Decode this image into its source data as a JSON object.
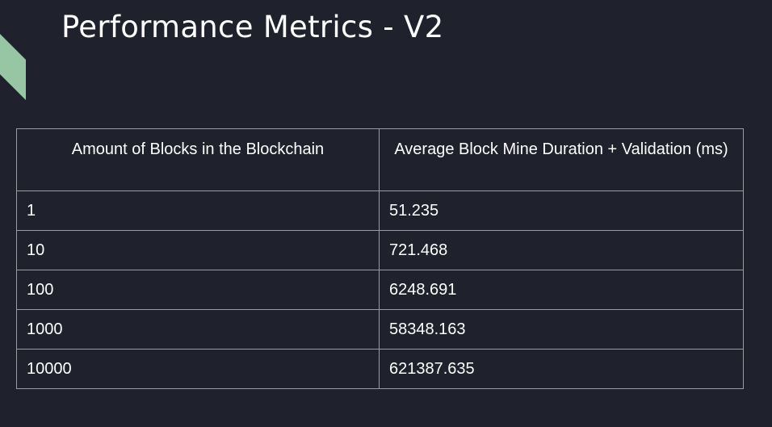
{
  "slide": {
    "title": "Performance Metrics - V2"
  },
  "colors": {
    "background": "#1f222d",
    "accent": "#97c6a4",
    "table_border": "#9a9ca3",
    "text": "#ffffff"
  },
  "table": {
    "headers": [
      "Amount of Blocks in the Blockchain",
      "Average Block Mine Duration + Validation (ms)"
    ],
    "rows": [
      [
        "1",
        "51.235"
      ],
      [
        "10",
        "721.468"
      ],
      [
        "100",
        "6248.691"
      ],
      [
        "1000",
        "58348.163"
      ],
      [
        "10000",
        "621387.635"
      ]
    ]
  }
}
